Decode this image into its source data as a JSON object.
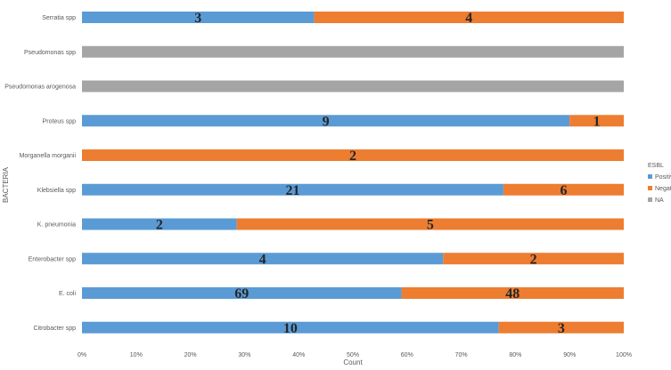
{
  "chart_data": {
    "type": "bar",
    "orientation": "horizontal",
    "stacked": "percent",
    "title": "",
    "xlabel": "Count",
    "ylabel": "BACTERIA",
    "xlim": [
      0,
      100
    ],
    "x_ticks": [
      "0%",
      "10%",
      "20%",
      "30%",
      "40%",
      "50%",
      "60%",
      "70%",
      "80%",
      "90%",
      "100%"
    ],
    "grid": false,
    "categories": [
      "Serratia spp",
      "Pseudomonas spp",
      "Pseudomonas arogenosa",
      "Proteus spp",
      "Morganella morganii",
      "Klebsiella spp",
      "K. pneumonia",
      "Enterobacter spp",
      "E. coli",
      "Citrobacter spp"
    ],
    "series": [
      {
        "name": "Positive",
        "color": "#5b9bd5",
        "values": [
          3,
          null,
          null,
          9,
          null,
          21,
          2,
          4,
          69,
          10
        ]
      },
      {
        "name": "Negative",
        "color": "#ed7d31",
        "values": [
          4,
          null,
          null,
          1,
          2,
          6,
          5,
          2,
          48,
          3
        ]
      },
      {
        "name": "NA",
        "color": "#a5a5a5",
        "values": [
          null,
          1,
          1,
          null,
          null,
          null,
          null,
          null,
          null,
          null
        ]
      }
    ],
    "data_labels": [
      [
        "3",
        "",
        "",
        "9",
        "",
        "21",
        "2",
        "4",
        "69",
        "10"
      ],
      [
        "4",
        "",
        "",
        "1",
        "2",
        "6",
        "5",
        "2",
        "48",
        "3"
      ],
      [
        "",
        "",
        "",
        "",
        "",
        "",
        "",
        "",
        "",
        ""
      ]
    ],
    "legend": {
      "title": "ESBL",
      "position": "right"
    }
  }
}
